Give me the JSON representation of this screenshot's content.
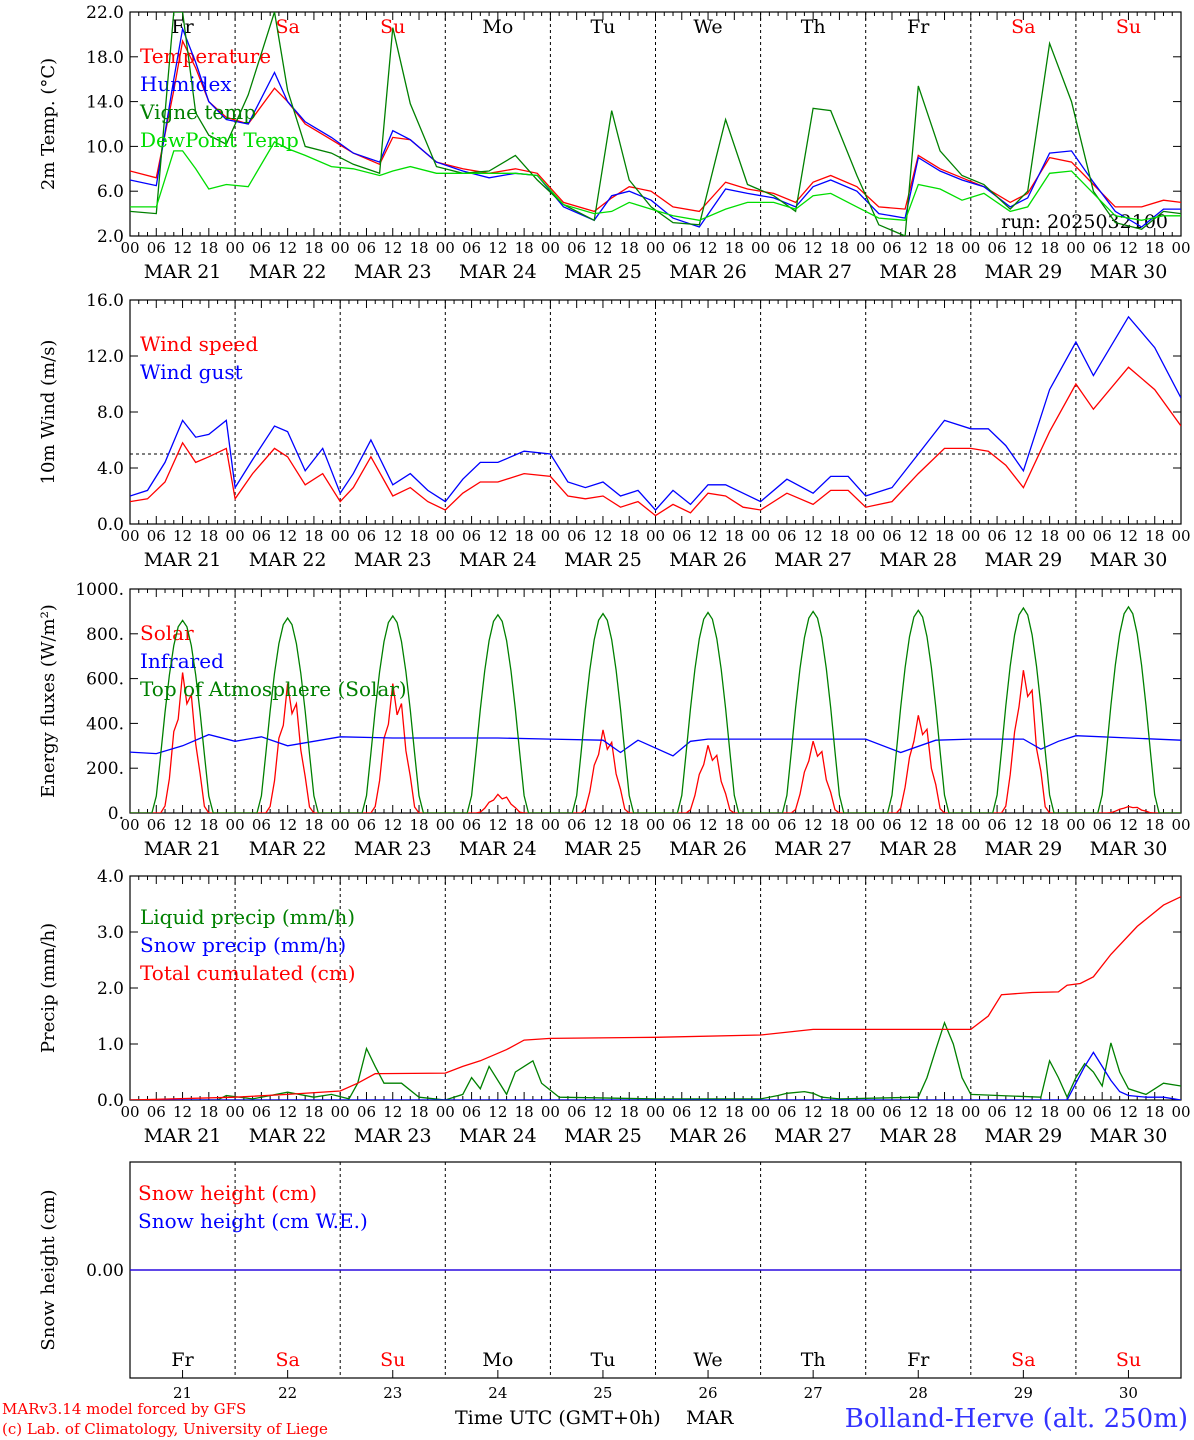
{
  "footer": {
    "model": "MARv3.14 model forced by GFS",
    "copyright": "(c) Lab. of Climatology, University of Liege",
    "xlabel": "Time UTC (GMT+0h)",
    "month": "MAR",
    "location": "Bolland-Herve (alt. 250m)"
  },
  "days": [
    {
      "weekday": "Fr",
      "date": "MAR 21",
      "num": "21",
      "weekend": false
    },
    {
      "weekday": "Sa",
      "date": "MAR 22",
      "num": "22",
      "weekend": true
    },
    {
      "weekday": "Su",
      "date": "MAR 23",
      "num": "23",
      "weekend": true
    },
    {
      "weekday": "Mo",
      "date": "MAR 24",
      "num": "24",
      "weekend": false
    },
    {
      "weekday": "Tu",
      "date": "MAR 25",
      "num": "25",
      "weekend": false
    },
    {
      "weekday": "We",
      "date": "MAR 26",
      "num": "26",
      "weekend": false
    },
    {
      "weekday": "Th",
      "date": "MAR 27",
      "num": "27",
      "weekend": false
    },
    {
      "weekday": "Fr",
      "date": "MAR 28",
      "num": "28",
      "weekend": false
    },
    {
      "weekday": "Sa",
      "date": "MAR 29",
      "num": "29",
      "weekend": true
    },
    {
      "weekday": "Su",
      "date": "MAR 30",
      "num": "30",
      "weekend": true
    }
  ],
  "hour_labels": [
    "00",
    "06",
    "12",
    "18"
  ],
  "colors": {
    "red": "#ff0000",
    "blue": "#0000ff",
    "green": "#008000",
    "lightgreen": "#00dd00",
    "weekday": "#000000",
    "weekend": "#ff0000",
    "location": "#3333ff"
  },
  "chart_data": [
    {
      "type": "line",
      "ylabel": "2m Temp. (°C)",
      "ylim": [
        2,
        22
      ],
      "yticks": [
        2,
        6,
        10,
        14,
        18,
        22
      ],
      "ytick_labels": [
        "2.0",
        "6.0",
        "10.0",
        "14.0",
        "18.0",
        "22.0"
      ],
      "x_hours": [
        0,
        6,
        10,
        12,
        15,
        18,
        22,
        27,
        33,
        36,
        40,
        46,
        51,
        57,
        60,
        64,
        70,
        76,
        82,
        88,
        93,
        99,
        106,
        110,
        114,
        119,
        124,
        130,
        136,
        141,
        147,
        152,
        156,
        160,
        166,
        171,
        177,
        180,
        185,
        190,
        195,
        201,
        205,
        210,
        215,
        220,
        225,
        231,
        236,
        240
      ],
      "annotation": "run: 2025032100",
      "series": [
        {
          "name": "Temperature",
          "color": "red",
          "values": [
            7.8,
            7.2,
            15,
            19.4,
            17,
            14,
            12.6,
            12,
            15.2,
            14,
            12,
            10.6,
            9.4,
            8.4,
            10.8,
            10.6,
            8.6,
            8.0,
            7.6,
            8.0,
            7.6,
            5.0,
            4.2,
            5.4,
            6.4,
            6.0,
            4.6,
            4.2,
            6.8,
            6.2,
            5.8,
            5.0,
            6.8,
            7.4,
            6.4,
            4.6,
            4.4,
            9.2,
            8.0,
            7.2,
            6.4,
            5.0,
            5.8,
            9.0,
            8.6,
            6.6,
            4.6,
            4.6,
            5.2,
            5.0
          ]
        },
        {
          "name": "Humidex",
          "color": "blue",
          "values": [
            7.0,
            6.5,
            16,
            20.5,
            17.5,
            14,
            12.4,
            12,
            16.6,
            14,
            12.2,
            10.8,
            9.4,
            8.6,
            11.4,
            10.6,
            8.6,
            7.8,
            7.2,
            7.6,
            7.4,
            4.6,
            3.4,
            5.6,
            6.0,
            5.2,
            3.6,
            2.8,
            6.2,
            5.8,
            5.4,
            4.6,
            6.4,
            7.0,
            6.0,
            4.0,
            3.6,
            9.0,
            7.8,
            7.0,
            6.4,
            4.6,
            5.4,
            9.4,
            9.6,
            6.8,
            4.2,
            2.8,
            4.4,
            4.4
          ]
        },
        {
          "name": "Vigne temp",
          "color": "green",
          "values": [
            4.2,
            4.0,
            22,
            22,
            13,
            11,
            10.2,
            14.6,
            22,
            15,
            10.0,
            9.4,
            8.4,
            7.6,
            20.6,
            13.8,
            8.2,
            7.6,
            7.8,
            9.2,
            7.0,
            4.8,
            3.4,
            13.2,
            7.0,
            4.6,
            3.2,
            3.0,
            12.4,
            6.6,
            5.6,
            4.2,
            13.4,
            13.2,
            7.4,
            3.0,
            2.0,
            15.4,
            9.6,
            7.4,
            6.6,
            4.4,
            6.0,
            19.2,
            14.0,
            6.0,
            3.2,
            2.6,
            4.2,
            4.0
          ]
        },
        {
          "name": "DewPoint Temp",
          "color": "lightgreen",
          "values": [
            4.6,
            4.6,
            9.6,
            9.6,
            8.0,
            6.2,
            6.6,
            6.4,
            10.4,
            9.8,
            9.2,
            8.2,
            8.0,
            7.4,
            7.8,
            8.2,
            7.6,
            7.6,
            7.6,
            7.6,
            7.4,
            4.8,
            4.0,
            4.2,
            5.0,
            4.4,
            3.8,
            3.4,
            4.4,
            5.0,
            5.0,
            4.4,
            5.6,
            5.8,
            4.6,
            3.6,
            3.4,
            6.6,
            6.2,
            5.2,
            5.8,
            4.2,
            4.6,
            7.6,
            7.8,
            5.8,
            3.8,
            3.4,
            3.8,
            3.8
          ]
        }
      ]
    },
    {
      "type": "line",
      "ylabel": "10m Wind (m/s)",
      "ylim": [
        0,
        16
      ],
      "yticks": [
        0,
        4,
        8,
        12,
        16
      ],
      "ytick_labels": [
        "0.0",
        "4.0",
        "8.0",
        "12.0",
        "16.0"
      ],
      "hline": 5,
      "x_hours": [
        0,
        4,
        8,
        12,
        15,
        18,
        22,
        24,
        28,
        33,
        36,
        40,
        44,
        48,
        51,
        55,
        60,
        64,
        68,
        72,
        76,
        80,
        84,
        90,
        96,
        100,
        104,
        108,
        112,
        116,
        120,
        124,
        128,
        132,
        136,
        140,
        144,
        150,
        156,
        160,
        164,
        168,
        174,
        180,
        186,
        192,
        196,
        200,
        204,
        210,
        216,
        220,
        228,
        234,
        240
      ],
      "series": [
        {
          "name": "Wind speed",
          "color": "red",
          "values": [
            1.6,
            1.8,
            3.0,
            5.8,
            4.4,
            4.8,
            5.4,
            1.8,
            3.6,
            5.4,
            4.8,
            2.8,
            3.6,
            1.6,
            2.6,
            4.8,
            2.0,
            2.6,
            1.6,
            1.0,
            2.2,
            3.0,
            3.0,
            3.6,
            3.4,
            2.0,
            1.8,
            2.0,
            1.2,
            1.6,
            0.6,
            1.4,
            0.8,
            2.2,
            2.0,
            1.2,
            1.0,
            2.2,
            1.4,
            2.4,
            2.4,
            1.2,
            1.6,
            3.6,
            5.4,
            5.4,
            5.2,
            4.2,
            2.6,
            6.6,
            10.0,
            8.2,
            11.2,
            9.6,
            7.0
          ]
        },
        {
          "name": "Wind gust",
          "color": "blue",
          "values": [
            2.0,
            2.4,
            4.4,
            7.4,
            6.2,
            6.4,
            7.4,
            2.6,
            4.6,
            7.0,
            6.6,
            3.8,
            5.4,
            2.2,
            3.6,
            6.0,
            2.8,
            3.6,
            2.4,
            1.6,
            3.2,
            4.4,
            4.4,
            5.2,
            5.0,
            3.0,
            2.6,
            3.0,
            2.0,
            2.4,
            1.0,
            2.4,
            1.4,
            2.8,
            2.8,
            2.2,
            1.6,
            3.2,
            2.2,
            3.4,
            3.4,
            2.0,
            2.6,
            5.0,
            7.4,
            6.8,
            6.8,
            5.6,
            3.8,
            9.6,
            13.0,
            10.6,
            14.8,
            12.6,
            9.0
          ]
        }
      ]
    },
    {
      "type": "line",
      "ylabel": "Energy fluxes (W/m²)",
      "ylim": [
        0,
        1000
      ],
      "yticks": [
        0,
        200,
        400,
        600,
        800,
        1000
      ],
      "ytick_labels": [
        "0.",
        "200.",
        "400.",
        "600.",
        "800.",
        "1000."
      ],
      "series": [
        {
          "name": "Solar",
          "color": "red",
          "peaks": [
            640,
            590,
            590,
            85,
            380,
            310,
            330,
            450,
            660,
            30
          ]
        },
        {
          "name": "Infrared",
          "color": "blue",
          "x_hours": [
            0,
            6,
            12,
            18,
            24,
            30,
            36,
            48,
            60,
            72,
            84,
            96,
            108,
            112,
            116,
            124,
            128,
            132,
            144,
            156,
            168,
            176,
            184,
            192,
            204,
            208,
            212,
            216,
            240
          ],
          "values": [
            272,
            265,
            300,
            350,
            320,
            340,
            300,
            340,
            335,
            335,
            335,
            330,
            325,
            270,
            325,
            255,
            320,
            330,
            330,
            330,
            330,
            270,
            325,
            330,
            330,
            285,
            320,
            345,
            325
          ]
        },
        {
          "name": "Top of Atmosphere (Solar)",
          "color": "green",
          "peaks": [
            860,
            870,
            880,
            885,
            890,
            895,
            900,
            905,
            915,
            920
          ]
        }
      ]
    },
    {
      "type": "line",
      "ylabel": "Precip (mm/h)",
      "ylim": [
        0,
        4
      ],
      "yticks": [
        0,
        1,
        2,
        3,
        4
      ],
      "ytick_labels": [
        "0.0",
        "1.0",
        "2.0",
        "3.0",
        "4.0"
      ],
      "series": [
        {
          "name": "Liquid precip (mm/h)",
          "color": "green",
          "x_hours": [
            0,
            20,
            22,
            28,
            36,
            42,
            46,
            50,
            52,
            54,
            56,
            58,
            62,
            66,
            72,
            76,
            78,
            80,
            82,
            86,
            88,
            90,
            92,
            94,
            98,
            120,
            144,
            148,
            150,
            154,
            156,
            158,
            162,
            180,
            182,
            184,
            186,
            188,
            190,
            192,
            208,
            210,
            212,
            214,
            216,
            218,
            220,
            222,
            224,
            226,
            228,
            232,
            236,
            240
          ],
          "values": [
            0,
            0,
            0.08,
            0.02,
            0.14,
            0.05,
            0.1,
            0.02,
            0.3,
            0.92,
            0.6,
            0.3,
            0.3,
            0.05,
            0,
            0.1,
            0.4,
            0.2,
            0.6,
            0.1,
            0.5,
            0.6,
            0.7,
            0.3,
            0.05,
            0.02,
            0.02,
            0.08,
            0.12,
            0.15,
            0.12,
            0.05,
            0.02,
            0.05,
            0.4,
            0.9,
            1.38,
            1.0,
            0.4,
            0.1,
            0.05,
            0.7,
            0.4,
            0.05,
            0.4,
            0.65,
            0.5,
            0.25,
            1.02,
            0.5,
            0.2,
            0.1,
            0.3,
            0.25
          ]
        },
        {
          "name": "Snow precip (mm/h)",
          "color": "blue",
          "x_hours": [
            0,
            214,
            216,
            218,
            220,
            222,
            224,
            226,
            228,
            232,
            236,
            240
          ],
          "values": [
            0,
            0,
            0.3,
            0.6,
            0.85,
            0.6,
            0.35,
            0.15,
            0.08,
            0.05,
            0.05,
            0.0
          ]
        },
        {
          "name": "Total cumulated (cm)",
          "color": "red",
          "x_hours": [
            0,
            24,
            36,
            48,
            52,
            56,
            72,
            76,
            80,
            86,
            90,
            96,
            120,
            144,
            156,
            192,
            196,
            199,
            206,
            212,
            214,
            217,
            220,
            224,
            230,
            236,
            240
          ],
          "values": [
            0,
            0.05,
            0.1,
            0.16,
            0.3,
            0.47,
            0.48,
            0.6,
            0.7,
            0.9,
            1.07,
            1.1,
            1.12,
            1.16,
            1.26,
            1.26,
            1.5,
            1.88,
            1.92,
            1.93,
            2.05,
            2.08,
            2.2,
            2.6,
            3.1,
            3.48,
            3.63
          ]
        }
      ]
    },
    {
      "type": "line",
      "ylabel": "Snow height (cm)",
      "ylim": [
        -1,
        1
      ],
      "yticks": [
        0
      ],
      "ytick_labels": [
        "0.00"
      ],
      "series": [
        {
          "name": "Snow height (cm)",
          "color": "red",
          "values": [
            0,
            0
          ]
        },
        {
          "name": "Snow height (cm W.E.)",
          "color": "blue",
          "values": [
            0,
            0
          ]
        }
      ]
    }
  ]
}
